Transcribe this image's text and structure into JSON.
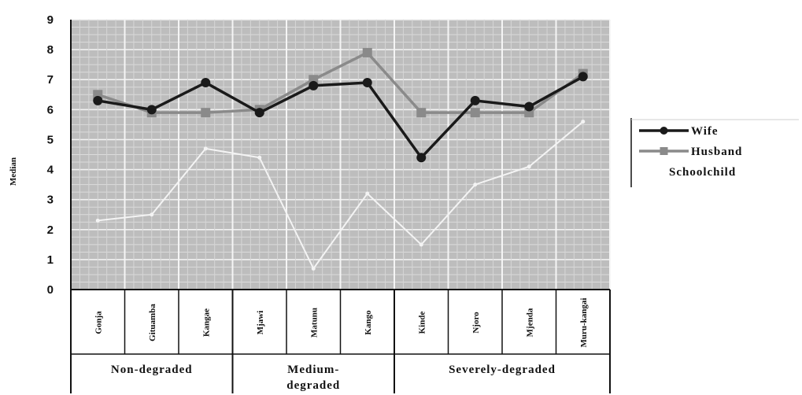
{
  "chart_data": {
    "type": "line",
    "ylabel": "Median",
    "ylim": [
      0,
      9
    ],
    "yticks": [
      "0",
      "1",
      "2",
      "3",
      "4",
      "5",
      "6",
      "7",
      "8",
      "9"
    ],
    "categories": [
      "Gonja",
      "Gituamba",
      "Kangae",
      "Mjawi",
      "Matunu",
      "Kango",
      "Kinde",
      "Njoro",
      "Mjenda",
      "Muru-kangai"
    ],
    "category_labels": [
      "Gonja",
      "Gituamba",
      "Kangae",
      "Mjawi",
      "Matunu",
      "Kango",
      "Kinde",
      "Njoro",
      "Mjenda",
      "Muru-kangai"
    ],
    "groups": [
      {
        "label": "Non-degraded",
        "span": [
          0,
          2
        ]
      },
      {
        "label": "Medium-degraded",
        "label_lines": [
          "Medium-",
          "degraded"
        ],
        "span": [
          3,
          5
        ]
      },
      {
        "label": "Severely-degraded",
        "span": [
          6,
          9
        ]
      }
    ],
    "series": [
      {
        "name": "Wife",
        "color": "#1a1a1a",
        "marker": "circle",
        "values": [
          6.3,
          6.0,
          6.9,
          5.9,
          6.8,
          6.9,
          4.4,
          6.3,
          6.1,
          7.1
        ]
      },
      {
        "name": "Husband",
        "color": "#8a8a8a",
        "marker": "square",
        "values": [
          6.5,
          5.9,
          5.9,
          6.0,
          7.0,
          7.9,
          5.9,
          5.9,
          5.9,
          7.2
        ]
      },
      {
        "name": "Schoolchild",
        "color": "#f4f4f4",
        "marker": "none",
        "values": [
          2.3,
          2.5,
          4.7,
          4.4,
          0.7,
          3.2,
          1.5,
          3.5,
          4.1,
          5.6
        ]
      }
    ],
    "legend_position": "right",
    "grid": true
  }
}
